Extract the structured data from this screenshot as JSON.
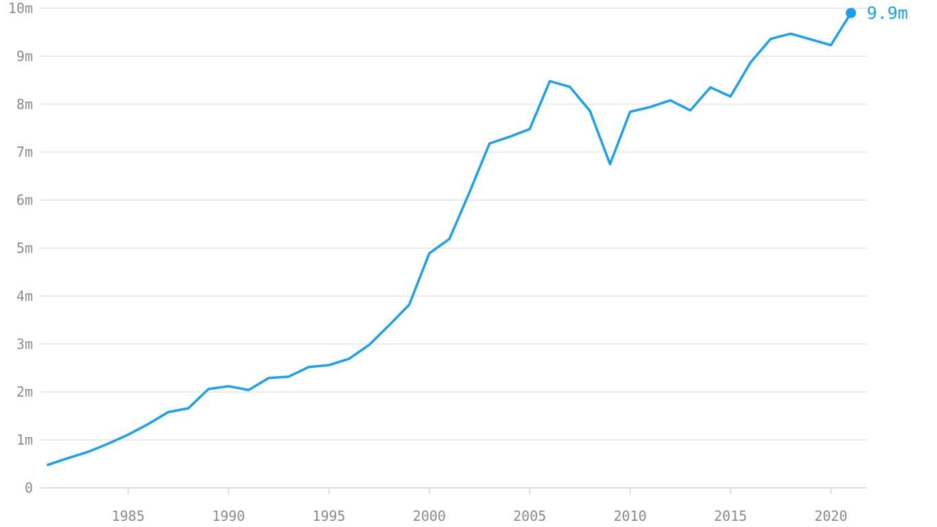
{
  "chart_data": {
    "type": "line",
    "title": "",
    "xlabel": "",
    "ylabel": "",
    "xlim": [
      1980.6,
      2021.8
    ],
    "ylim": [
      0,
      10
    ],
    "x_ticks": [
      1985,
      1990,
      1995,
      2000,
      2005,
      2010,
      2015,
      2020
    ],
    "x_tick_labels": [
      "1985",
      "1990",
      "1995",
      "2000",
      "2005",
      "2010",
      "2015",
      "2020"
    ],
    "y_ticks": [
      0,
      1,
      2,
      3,
      4,
      5,
      6,
      7,
      8,
      9,
      10
    ],
    "y_tick_labels": [
      "0",
      "1m",
      "2m",
      "3m",
      "4m",
      "5m",
      "6m",
      "7m",
      "8m",
      "9m",
      "10m"
    ],
    "grid": true,
    "legend": "none",
    "series": [
      {
        "color": "#1a9ff0",
        "x": [
          1981,
          1982,
          1983,
          1984,
          1985,
          1986,
          1987,
          1988,
          1989,
          1990,
          1991,
          1992,
          1993,
          1994,
          1995,
          1996,
          1997,
          1998,
          1999,
          2000,
          2001,
          2002,
          2003,
          2004,
          2005,
          2006,
          2007,
          2008,
          2009,
          2010,
          2011,
          2012,
          2013,
          2014,
          2015,
          2016,
          2017,
          2018,
          2019,
          2020,
          2021
        ],
        "values": [
          0.48,
          0.62,
          0.75,
          0.92,
          1.11,
          1.33,
          1.58,
          1.66,
          2.06,
          2.12,
          2.04,
          2.29,
          2.32,
          2.52,
          2.56,
          2.69,
          2.98,
          3.39,
          3.82,
          4.89,
          5.19,
          6.16,
          7.18,
          7.32,
          7.48,
          8.48,
          8.36,
          7.86,
          6.75,
          7.84,
          7.94,
          8.08,
          7.87,
          8.35,
          8.16,
          8.87,
          9.36,
          9.47,
          9.35,
          9.23,
          9.9
        ]
      }
    ],
    "end_point_label": "9.9m"
  }
}
